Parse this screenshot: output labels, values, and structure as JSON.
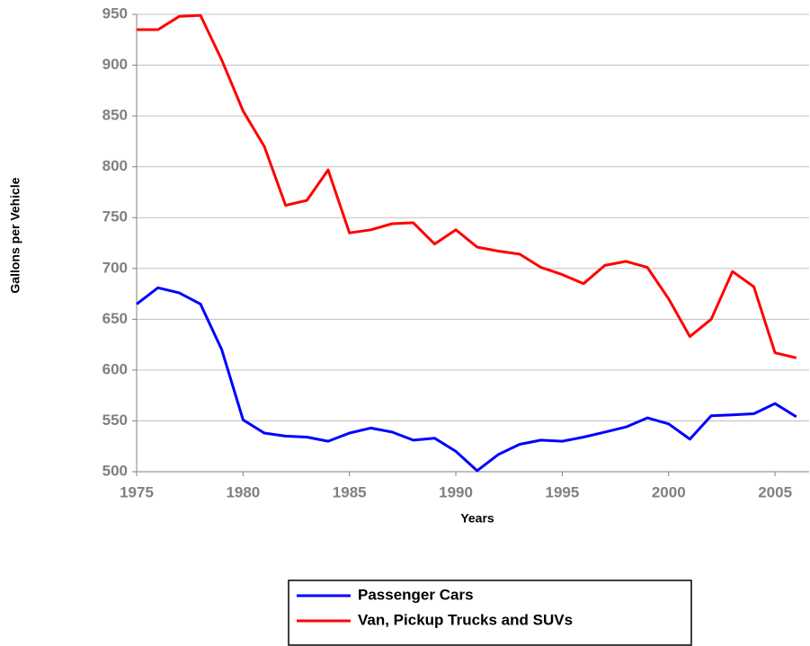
{
  "chart_data": {
    "type": "line",
    "x_label": "Years",
    "y_label": "Gallons per Vehicle",
    "x": [
      1975,
      1976,
      1977,
      1978,
      1979,
      1980,
      1981,
      1982,
      1983,
      1984,
      1985,
      1986,
      1987,
      1988,
      1989,
      1990,
      1991,
      1992,
      1993,
      1994,
      1995,
      1996,
      1997,
      1998,
      1999,
      2000,
      2001,
      2002,
      2003,
      2004,
      2005,
      2006
    ],
    "series": [
      {
        "name": "Passenger Cars",
        "color": "#0000ff",
        "values": [
          665,
          681,
          676,
          665,
          620,
          551,
          538,
          535,
          534,
          530,
          538,
          543,
          539,
          531,
          533,
          520,
          501,
          517,
          527,
          531,
          530,
          534,
          539,
          544,
          553,
          547,
          532,
          555,
          556,
          557,
          567,
          554
        ]
      },
      {
        "name": "Van, Pickup Trucks and SUVs",
        "color": "#ff0000",
        "values": [
          935,
          935,
          948,
          949,
          905,
          855,
          820,
          762,
          767,
          797,
          735,
          738,
          744,
          745,
          724,
          738,
          721,
          717,
          714,
          701,
          694,
          685,
          703,
          707,
          701,
          670,
          633,
          650,
          697,
          682,
          617,
          612
        ]
      }
    ],
    "xlim": [
      1975,
      2006.6
    ],
    "xticks": [
      1975,
      1980,
      1985,
      1990,
      1995,
      2000,
      2005
    ],
    "ylim": [
      500,
      950
    ],
    "yticks": [
      500,
      550,
      600,
      650,
      700,
      750,
      800,
      850,
      900,
      950
    ],
    "grid": true
  }
}
